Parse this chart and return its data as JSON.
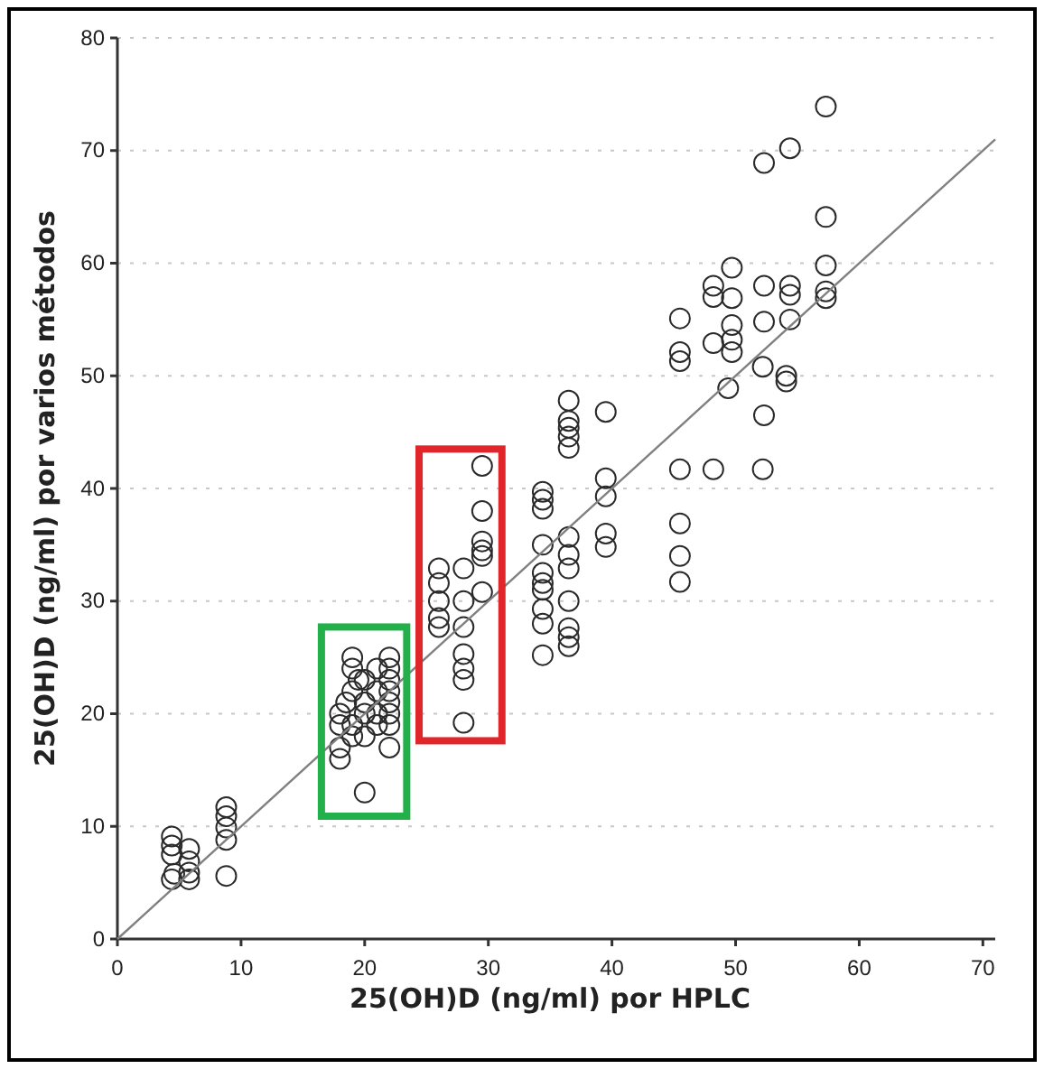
{
  "chart_data": {
    "type": "scatter",
    "xlabel": "25(OH)D (ng/ml) por HPLC",
    "ylabel": "25(OH)D (ng/ml) por varios métodos",
    "xlim": [
      0,
      71
    ],
    "ylim": [
      0,
      80
    ],
    "xticks": [
      0,
      10,
      20,
      30,
      40,
      50,
      60,
      70
    ],
    "yticks": [
      0,
      10,
      20,
      30,
      40,
      50,
      60,
      70,
      80
    ],
    "grid": "y",
    "series": [
      {
        "color": "#2a2a2a",
        "marker": "circle",
        "x": [
          4.4,
          4.4,
          4.4,
          4.4,
          4.6,
          5.8,
          5.8,
          5.8,
          5.8,
          8.8,
          8.8,
          8.8,
          8.8,
          8.8,
          18,
          18,
          18,
          18,
          18.5,
          19,
          19,
          19,
          19,
          19,
          19.5,
          20,
          20,
          20,
          20,
          20,
          21,
          21,
          21,
          21,
          22,
          22,
          22,
          22,
          22,
          22,
          22,
          22,
          26,
          26,
          26,
          26,
          26,
          28,
          28,
          28,
          28,
          28,
          28,
          28,
          29.5,
          29.5,
          29.5,
          29.5,
          29.5,
          29.5,
          34.4,
          34.4,
          34.4,
          34.4,
          34.4,
          34.4,
          34.4,
          34.4,
          34.4,
          34.4,
          36.5,
          36.5,
          36.5,
          36.5,
          36.5,
          36.5,
          36.5,
          36.5,
          36.5,
          36.5,
          36.5,
          36.5,
          39.5,
          39.5,
          39.5,
          39.5,
          39.5,
          45.5,
          45.5,
          45.5,
          45.5,
          45.5,
          45.5,
          45.5,
          48.2,
          48.2,
          48.2,
          48.2,
          49.4,
          49.7,
          49.7,
          49.7,
          49.7,
          49.7,
          52.2,
          52.2,
          52.3,
          52.3,
          52.3,
          52.3,
          54.1,
          54.1,
          54.4,
          54.4,
          54.4,
          54.4,
          57.3,
          57.3,
          57.3,
          57.3,
          57.3
        ],
        "values": [
          9.1,
          8.3,
          7.5,
          5.3,
          5.8,
          8,
          6.9,
          5.9,
          5.3,
          11.7,
          10.9,
          9.9,
          8.8,
          5.6,
          16,
          17,
          19,
          20,
          21,
          19,
          24,
          25,
          22,
          18,
          23,
          13,
          21,
          20,
          23,
          18,
          22,
          24,
          19,
          20,
          25,
          24,
          22,
          21,
          20,
          17,
          19,
          23,
          32.9,
          31.6,
          30,
          28.5,
          27.7,
          32.9,
          30,
          27.7,
          25.3,
          24,
          23,
          19.2,
          42,
          38,
          35.3,
          34.5,
          34,
          30.8,
          39.7,
          39,
          38.2,
          35,
          32.5,
          31.6,
          31,
          29.3,
          28,
          25.2,
          47.8,
          46,
          45.4,
          44.6,
          43.6,
          35.7,
          34.1,
          32.9,
          30,
          27.6,
          26.8,
          26,
          46.8,
          40.9,
          39.3,
          36,
          34.8,
          55.1,
          52.1,
          51.3,
          41.7,
          36.9,
          34,
          31.7,
          41.7,
          58,
          57,
          52.9,
          48.9,
          59.6,
          56.9,
          54.5,
          53.2,
          52.1,
          50.8,
          41.7,
          68.9,
          58,
          54.8,
          46.5,
          50,
          49.5,
          70.2,
          58,
          57.2,
          55,
          73.9,
          64.1,
          59.8,
          57.5,
          56.9
        ]
      },
      {
        "type": "line",
        "color": "#808080",
        "x": [
          0,
          71
        ],
        "values": [
          0,
          71
        ],
        "marker": "none"
      }
    ]
  }
}
